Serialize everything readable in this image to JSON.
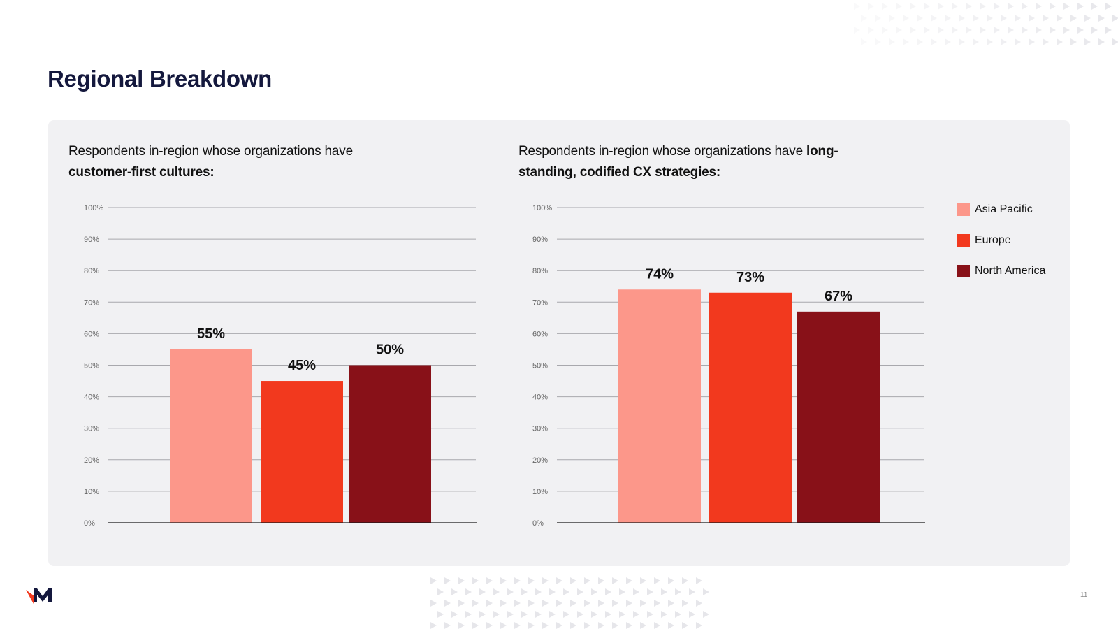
{
  "page": {
    "title": "Regional Breakdown",
    "page_number": "11",
    "logo": "M"
  },
  "colors": {
    "asia_pacific": "#fc978a",
    "europe": "#f2391e",
    "north_america": "#881118",
    "title": "#14183d",
    "panel": "#f1f1f3"
  },
  "legend": {
    "items": [
      {
        "label": "Asia Pacific",
        "color": "#fc978a"
      },
      {
        "label": "Europe",
        "color": "#f2391e"
      },
      {
        "label": "North America",
        "color": "#881118"
      }
    ]
  },
  "charts": {
    "left": {
      "title_regular": "Respondents in-region whose organizations have ",
      "title_bold": "customer-first cultures:"
    },
    "right": {
      "title_regular": "Respondents in-region whose organizations have ",
      "title_bold": "long-standing, codified CX strategies:"
    }
  },
  "chart_data": [
    {
      "type": "bar",
      "title": "Respondents in-region whose organizations have customer-first cultures:",
      "categories": [
        "Asia Pacific",
        "Europe",
        "North America"
      ],
      "values": [
        55,
        45,
        50
      ],
      "value_labels": [
        "55%",
        "45%",
        "50%"
      ],
      "ylim": [
        0,
        100
      ],
      "yticks": [
        "0%",
        "10%",
        "20%",
        "30%",
        "40%",
        "50%",
        "60%",
        "70%",
        "80%",
        "90%",
        "100%"
      ],
      "xlabel": "",
      "ylabel": "",
      "grid": true,
      "legend": "right"
    },
    {
      "type": "bar",
      "title": "Respondents in-region whose organizations have long-standing, codified CX strategies:",
      "categories": [
        "Asia Pacific",
        "Europe",
        "North America"
      ],
      "values": [
        74,
        73,
        67
      ],
      "value_labels": [
        "74%",
        "73%",
        "67%"
      ],
      "ylim": [
        0,
        100
      ],
      "yticks": [
        "0%",
        "10%",
        "20%",
        "30%",
        "40%",
        "50%",
        "60%",
        "70%",
        "80%",
        "90%",
        "100%"
      ],
      "xlabel": "",
      "ylabel": "",
      "grid": true,
      "legend": "right"
    }
  ]
}
